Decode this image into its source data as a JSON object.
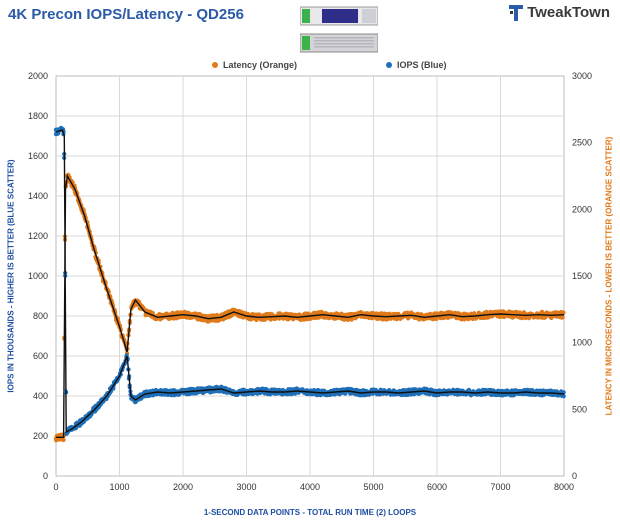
{
  "header": {
    "title": "4K Precon IOPS/Latency - QD256",
    "logo_text": "TweakTown"
  },
  "colors": {
    "iops": "#1f6fb8",
    "latency": "#e07a1a",
    "trend": "#111111",
    "title": "#2a5aa8",
    "grid": "#d9d9d9"
  },
  "chart_data": {
    "type": "scatter",
    "title": "4K Precon IOPS/Latency - QD256",
    "xlabel": "1-SECOND  DATA POINTS - TOTAL RUN TIME (2) LOOPS",
    "ylabel_left": "IOPS IN THOUSANDS - HIGHER IS BETTER (BLUE SCATTER)",
    "ylabel_right": "LATENCY IN MICROSECONDS - LOWER IS BETTER (ORANGE SCATTER)",
    "xlim": [
      0,
      8000
    ],
    "ylim_left": [
      0,
      2000
    ],
    "ylim_right": [
      0,
      3000
    ],
    "x_ticks": [
      "0",
      "1000",
      "2000",
      "3000",
      "4000",
      "5000",
      "6000",
      "7000",
      "8000"
    ],
    "y_ticks_left": [
      "0",
      "200",
      "400",
      "600",
      "800",
      "1000",
      "1200",
      "1400",
      "1600",
      "1800",
      "2000"
    ],
    "y_ticks_right": [
      "0",
      "500",
      "1000",
      "1500",
      "2000",
      "2500",
      "3000"
    ],
    "grid": true,
    "legend_position": "top",
    "series": [
      {
        "name": "Latency (Orange)",
        "axis": "right",
        "points": [
          [
            0,
            290
          ],
          [
            120,
            290
          ],
          [
            150,
            2150
          ],
          [
            180,
            2250
          ],
          [
            300,
            2150
          ],
          [
            450,
            1950
          ],
          [
            600,
            1700
          ],
          [
            800,
            1400
          ],
          [
            1000,
            1120
          ],
          [
            1120,
            930
          ],
          [
            1180,
            1250
          ],
          [
            1250,
            1320
          ],
          [
            1400,
            1230
          ],
          [
            1600,
            1190
          ],
          [
            1800,
            1200
          ],
          [
            2000,
            1210
          ],
          [
            2200,
            1200
          ],
          [
            2400,
            1180
          ],
          [
            2600,
            1190
          ],
          [
            2800,
            1230
          ],
          [
            3000,
            1200
          ],
          [
            3200,
            1190
          ],
          [
            3400,
            1195
          ],
          [
            3600,
            1200
          ],
          [
            3800,
            1190
          ],
          [
            4000,
            1200
          ],
          [
            4200,
            1210
          ],
          [
            4400,
            1200
          ],
          [
            4600,
            1190
          ],
          [
            4800,
            1210
          ],
          [
            5000,
            1200
          ],
          [
            5200,
            1195
          ],
          [
            5400,
            1200
          ],
          [
            5600,
            1205
          ],
          [
            5800,
            1190
          ],
          [
            6000,
            1200
          ],
          [
            6200,
            1210
          ],
          [
            6400,
            1195
          ],
          [
            6600,
            1200
          ],
          [
            6800,
            1210
          ],
          [
            7000,
            1215
          ],
          [
            7200,
            1210
          ],
          [
            7400,
            1205
          ],
          [
            7600,
            1210
          ],
          [
            7800,
            1205
          ],
          [
            8000,
            1210
          ]
        ]
      },
      {
        "name": "IOPS (Blue)",
        "axis": "left",
        "points": [
          [
            0,
            1720
          ],
          [
            100,
            1730
          ],
          [
            130,
            1700
          ],
          [
            160,
            220
          ],
          [
            250,
            235
          ],
          [
            400,
            270
          ],
          [
            600,
            330
          ],
          [
            800,
            400
          ],
          [
            1000,
            500
          ],
          [
            1120,
            600
          ],
          [
            1180,
            400
          ],
          [
            1250,
            380
          ],
          [
            1400,
            410
          ],
          [
            1600,
            420
          ],
          [
            1800,
            415
          ],
          [
            2000,
            420
          ],
          [
            2200,
            425
          ],
          [
            2400,
            430
          ],
          [
            2600,
            435
          ],
          [
            2800,
            415
          ],
          [
            3000,
            420
          ],
          [
            3200,
            425
          ],
          [
            3400,
            420
          ],
          [
            3600,
            420
          ],
          [
            3800,
            425
          ],
          [
            4000,
            420
          ],
          [
            4200,
            415
          ],
          [
            4400,
            420
          ],
          [
            4600,
            425
          ],
          [
            4800,
            415
          ],
          [
            5000,
            420
          ],
          [
            5200,
            420
          ],
          [
            5400,
            415
          ],
          [
            5600,
            420
          ],
          [
            5800,
            425
          ],
          [
            6000,
            415
          ],
          [
            6200,
            420
          ],
          [
            6400,
            420
          ],
          [
            6600,
            415
          ],
          [
            6800,
            420
          ],
          [
            7000,
            415
          ],
          [
            7200,
            415
          ],
          [
            7400,
            420
          ],
          [
            7600,
            415
          ],
          [
            7800,
            415
          ],
          [
            8000,
            410
          ]
        ]
      }
    ]
  }
}
